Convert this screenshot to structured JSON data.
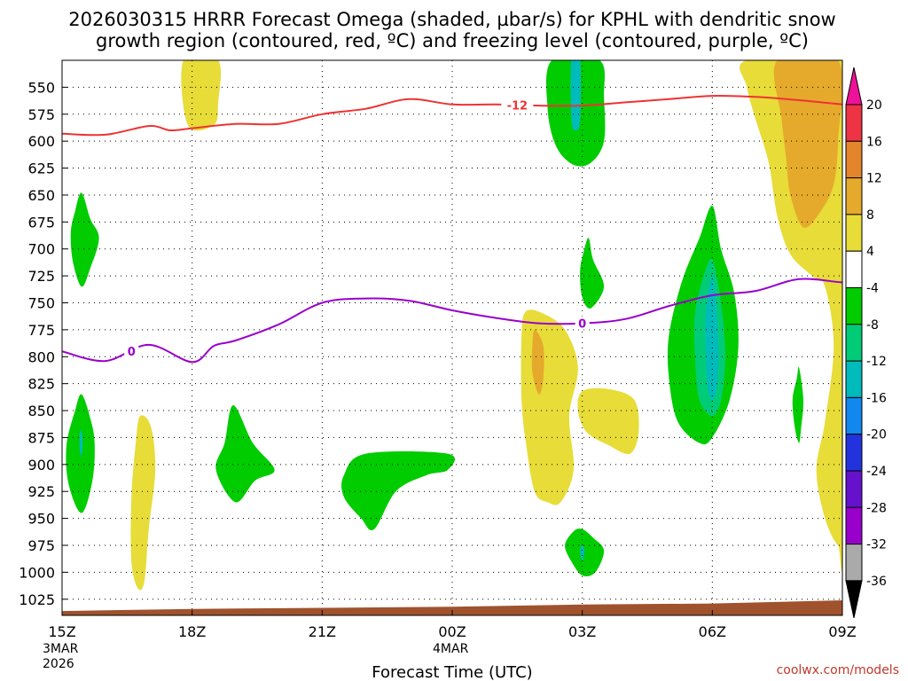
{
  "chart_data": {
    "type": "contour",
    "title_line1": "2026030315 HRRR Forecast Omega (shaded, µbar/s) for KPHL with dendritic snow",
    "title_line2": "growth region (contoured, red, ºC) and freezing level (contoured, purple, ºC)",
    "xlabel": "Forecast Time (UTC)",
    "credit": "coolwx.com/models",
    "x_range_hours": [
      0,
      18
    ],
    "x_ticks": [
      {
        "h": 0,
        "label": "15Z",
        "sub1": "3MAR",
        "sub2": "2026"
      },
      {
        "h": 3,
        "label": "18Z",
        "sub1": "",
        "sub2": ""
      },
      {
        "h": 6,
        "label": "21Z",
        "sub1": "",
        "sub2": ""
      },
      {
        "h": 9,
        "label": "00Z",
        "sub1": "4MAR",
        "sub2": ""
      },
      {
        "h": 12,
        "label": "03Z",
        "sub1": "",
        "sub2": ""
      },
      {
        "h": 15,
        "label": "06Z",
        "sub1": "",
        "sub2": ""
      },
      {
        "h": 18,
        "label": "09Z",
        "sub1": "",
        "sub2": ""
      }
    ],
    "y_range_hpa": [
      525,
      1040
    ],
    "y_ticks": [
      550,
      575,
      600,
      625,
      650,
      675,
      700,
      725,
      750,
      775,
      800,
      825,
      850,
      875,
      900,
      925,
      950,
      975,
      1000,
      1025
    ],
    "colorbar": {
      "bins": [
        {
          "lo": 20,
          "hi": 24,
          "color": "#ee1199"
        },
        {
          "lo": 16,
          "hi": 20,
          "color": "#ee3344"
        },
        {
          "lo": 12,
          "hi": 16,
          "color": "#e2852c"
        },
        {
          "lo": 8,
          "hi": 12,
          "color": "#e5aa2c"
        },
        {
          "lo": 4,
          "hi": 8,
          "color": "#e8dc38"
        },
        {
          "lo": -4,
          "hi": 4,
          "color": "#ffffff"
        },
        {
          "lo": -8,
          "hi": -4,
          "color": "#00cc00"
        },
        {
          "lo": -12,
          "hi": -8,
          "color": "#00cc77"
        },
        {
          "lo": -16,
          "hi": -12,
          "color": "#00bbbb"
        },
        {
          "lo": -20,
          "hi": -16,
          "color": "#1188ee"
        },
        {
          "lo": -24,
          "hi": -20,
          "color": "#2233dd"
        },
        {
          "lo": -28,
          "hi": -24,
          "color": "#6611cc"
        },
        {
          "lo": -32,
          "hi": -28,
          "color": "#9900cc"
        },
        {
          "lo": -36,
          "hi": -32,
          "color": "#aaaaaa"
        },
        {
          "lo": -40,
          "hi": -36,
          "color": "#000000"
        }
      ],
      "labels": [
        "20",
        "16",
        "12",
        "8",
        "4",
        "-4",
        "-8",
        "-12",
        "-16",
        "-20",
        "-24",
        "-28",
        "-32",
        "-36"
      ]
    },
    "shaded_regions": [
      {
        "name": "upper-yellow-plume",
        "color": "#e8dc38",
        "points": [
          [
            2.8,
            525
          ],
          [
            3.6,
            525
          ],
          [
            3.6,
            565
          ],
          [
            3.5,
            585
          ],
          [
            2.9,
            585
          ]
        ]
      },
      {
        "name": "upper-green-band",
        "color": "#00cc00",
        "points": [
          [
            11.3,
            525
          ],
          [
            12.4,
            525
          ],
          [
            12.5,
            560
          ],
          [
            12.5,
            600
          ],
          [
            12.2,
            620
          ],
          [
            11.8,
            622
          ],
          [
            11.4,
            605
          ],
          [
            11.2,
            570
          ]
        ]
      },
      {
        "name": "upper-green-band-core",
        "color": "#00bbbb",
        "points": [
          [
            11.75,
            525
          ],
          [
            11.95,
            525
          ],
          [
            11.95,
            580
          ],
          [
            11.85,
            590
          ],
          [
            11.75,
            580
          ]
        ]
      },
      {
        "name": "right-yellow-region",
        "color": "#e8dc38",
        "points": [
          [
            15.8,
            525
          ],
          [
            18,
            525
          ],
          [
            18,
            962
          ],
          [
            17.9,
            975
          ],
          [
            17.6,
            950
          ],
          [
            17.4,
            905
          ],
          [
            17.6,
            860
          ],
          [
            17.8,
            790
          ],
          [
            17.6,
            735
          ],
          [
            17.3,
            725
          ],
          [
            16.8,
            705
          ],
          [
            16.5,
            670
          ],
          [
            16.3,
            620
          ],
          [
            16.0,
            580
          ],
          [
            15.8,
            550
          ]
        ]
      },
      {
        "name": "right-orange-region",
        "color": "#e5aa2c",
        "points": [
          [
            16.5,
            525
          ],
          [
            17.9,
            525
          ],
          [
            17.9,
            600
          ],
          [
            17.8,
            640
          ],
          [
            17.5,
            665
          ],
          [
            17.1,
            680
          ],
          [
            16.8,
            650
          ],
          [
            16.7,
            615
          ],
          [
            16.6,
            580
          ]
        ]
      },
      {
        "name": "left-green-spot",
        "color": "#00cc00",
        "points": [
          [
            0.45,
            648
          ],
          [
            0.65,
            672
          ],
          [
            0.85,
            690
          ],
          [
            0.65,
            718
          ],
          [
            0.45,
            735
          ],
          [
            0.25,
            712
          ],
          [
            0.2,
            685
          ],
          [
            0.3,
            665
          ]
        ]
      },
      {
        "name": "left-low-green",
        "color": "#00cc00",
        "points": [
          [
            0.45,
            835
          ],
          [
            0.65,
            857
          ],
          [
            0.75,
            880
          ],
          [
            0.7,
            915
          ],
          [
            0.45,
            945
          ],
          [
            0.15,
            918
          ],
          [
            0.1,
            883
          ],
          [
            0.3,
            850
          ]
        ]
      },
      {
        "name": "left-low-green-core",
        "color": "#00bbbb",
        "points": [
          [
            0.42,
            868
          ],
          [
            0.47,
            875
          ],
          [
            0.46,
            890
          ],
          [
            0.42,
            890
          ],
          [
            0.4,
            878
          ]
        ]
      },
      {
        "name": "yellow-column-low-left",
        "color": "#e8dc38",
        "points": [
          [
            1.8,
            855
          ],
          [
            2.05,
            865
          ],
          [
            2.15,
            905
          ],
          [
            2.0,
            960
          ],
          [
            1.9,
            1008
          ],
          [
            1.75,
            1015
          ],
          [
            1.6,
            990
          ],
          [
            1.6,
            930
          ],
          [
            1.7,
            880
          ]
        ]
      },
      {
        "name": "green-1830",
        "color": "#00cc00",
        "points": [
          [
            3.95,
            845
          ],
          [
            4.4,
            880
          ],
          [
            4.9,
            905
          ],
          [
            4.45,
            915
          ],
          [
            4.0,
            935
          ],
          [
            3.55,
            905
          ],
          [
            3.75,
            880
          ]
        ]
      },
      {
        "name": "green-2200",
        "color": "#00cc00",
        "points": [
          [
            7.0,
            890
          ],
          [
            8.9,
            890
          ],
          [
            8.9,
            905
          ],
          [
            8.4,
            910
          ],
          [
            7.7,
            925
          ],
          [
            7.2,
            960
          ],
          [
            6.9,
            950
          ],
          [
            6.5,
            930
          ],
          [
            6.5,
            910
          ]
        ]
      },
      {
        "name": "yellow-0100",
        "color": "#e8dc38",
        "points": [
          [
            10.7,
            758
          ],
          [
            11.1,
            760
          ],
          [
            11.6,
            775
          ],
          [
            11.9,
            810
          ],
          [
            11.7,
            855
          ],
          [
            11.8,
            905
          ],
          [
            11.5,
            935
          ],
          [
            11.2,
            935
          ],
          [
            10.9,
            925
          ],
          [
            10.7,
            880
          ],
          [
            10.6,
            840
          ],
          [
            10.6,
            780
          ]
        ]
      },
      {
        "name": "orange-0100",
        "color": "#e5aa2c",
        "points": [
          [
            10.9,
            775
          ],
          [
            11.1,
            790
          ],
          [
            11.1,
            820
          ],
          [
            11.0,
            835
          ],
          [
            10.85,
            815
          ],
          [
            10.85,
            790
          ]
        ]
      },
      {
        "name": "yellow-0230",
        "color": "#e8dc38",
        "points": [
          [
            12.0,
            832
          ],
          [
            12.6,
            830
          ],
          [
            13.2,
            840
          ],
          [
            13.3,
            870
          ],
          [
            13.1,
            890
          ],
          [
            12.6,
            882
          ],
          [
            12.1,
            870
          ],
          [
            11.9,
            850
          ]
        ]
      },
      {
        "name": "green-0300-upper",
        "color": "#00cc00",
        "points": [
          [
            12.15,
            690
          ],
          [
            12.25,
            710
          ],
          [
            12.5,
            735
          ],
          [
            12.2,
            755
          ],
          [
            12.0,
            745
          ],
          [
            11.95,
            720
          ],
          [
            12.05,
            700
          ]
        ]
      },
      {
        "name": "green-0500-big",
        "color": "#00cc00",
        "points": [
          [
            15.0,
            660
          ],
          [
            15.2,
            700
          ],
          [
            15.5,
            740
          ],
          [
            15.6,
            790
          ],
          [
            15.4,
            840
          ],
          [
            15.0,
            875
          ],
          [
            14.7,
            880
          ],
          [
            14.2,
            860
          ],
          [
            14.0,
            820
          ],
          [
            14.0,
            780
          ],
          [
            14.3,
            730
          ],
          [
            14.7,
            690
          ]
        ]
      },
      {
        "name": "teal-0500",
        "color": "#00cc77",
        "points": [
          [
            15.0,
            710
          ],
          [
            15.2,
            750
          ],
          [
            15.3,
            800
          ],
          [
            15.2,
            840
          ],
          [
            15.0,
            855
          ],
          [
            14.7,
            840
          ],
          [
            14.6,
            800
          ],
          [
            14.6,
            760
          ],
          [
            14.8,
            725
          ]
        ]
      },
      {
        "name": "cyan-0500",
        "color": "#00bbbb",
        "points": [
          [
            15.0,
            725
          ],
          [
            15.1,
            760
          ],
          [
            15.15,
            800
          ],
          [
            15.1,
            830
          ],
          [
            15.0,
            840
          ],
          [
            14.9,
            830
          ],
          [
            14.85,
            800
          ],
          [
            14.85,
            760
          ]
        ]
      },
      {
        "name": "green-0700-sliver",
        "color": "#00cc00",
        "points": [
          [
            17.0,
            810
          ],
          [
            17.1,
            840
          ],
          [
            17.05,
            865
          ],
          [
            17.0,
            880
          ],
          [
            16.9,
            865
          ],
          [
            16.85,
            840
          ],
          [
            16.95,
            820
          ]
        ]
      },
      {
        "name": "green-0300-bottom",
        "color": "#00cc00",
        "points": [
          [
            12.0,
            960
          ],
          [
            12.25,
            968
          ],
          [
            12.5,
            980
          ],
          [
            12.3,
            1000
          ],
          [
            12.0,
            1003
          ],
          [
            11.75,
            990
          ],
          [
            11.6,
            975
          ],
          [
            11.8,
            962
          ]
        ]
      },
      {
        "name": "cyan-0300-bottom",
        "color": "#00bbbb",
        "points": [
          [
            12.0,
            975
          ],
          [
            12.05,
            980
          ],
          [
            12.0,
            990
          ],
          [
            11.95,
            980
          ]
        ]
      }
    ],
    "red_contour": {
      "label": "-12",
      "label_h": 10.5,
      "points": [
        [
          0,
          593
        ],
        [
          1,
          594
        ],
        [
          2,
          586
        ],
        [
          2.5,
          590
        ],
        [
          3,
          588
        ],
        [
          4,
          584
        ],
        [
          5,
          584
        ],
        [
          6,
          575
        ],
        [
          7,
          570
        ],
        [
          8,
          561
        ],
        [
          9,
          566
        ],
        [
          10,
          566
        ],
        [
          11,
          567
        ],
        [
          12,
          567
        ],
        [
          13,
          564
        ],
        [
          14,
          561
        ],
        [
          15,
          558
        ],
        [
          16,
          559
        ],
        [
          17,
          562
        ],
        [
          18,
          566
        ]
      ]
    },
    "purple_contour": {
      "label": "0",
      "label_h": 1.6,
      "label_h2": 12.0,
      "points": [
        [
          0,
          795
        ],
        [
          1,
          804
        ],
        [
          2,
          789
        ],
        [
          3,
          805
        ],
        [
          3.5,
          790
        ],
        [
          4,
          785
        ],
        [
          5,
          770
        ],
        [
          6,
          750
        ],
        [
          7,
          746
        ],
        [
          8,
          748
        ],
        [
          9,
          757
        ],
        [
          10,
          764
        ],
        [
          11,
          769
        ],
        [
          12,
          769
        ],
        [
          13,
          765
        ],
        [
          14,
          753
        ],
        [
          15,
          743
        ],
        [
          16,
          739
        ],
        [
          17,
          728
        ],
        [
          18,
          731
        ],
        [
          18.1,
          728
        ]
      ]
    },
    "ground_surface": {
      "color": "#a0522d",
      "points": [
        [
          0,
          1036
        ],
        [
          3,
          1034
        ],
        [
          6,
          1033
        ],
        [
          9,
          1032
        ],
        [
          12,
          1030
        ],
        [
          15,
          1029
        ],
        [
          18,
          1026
        ]
      ]
    }
  }
}
